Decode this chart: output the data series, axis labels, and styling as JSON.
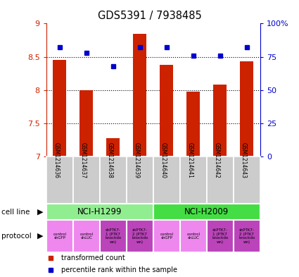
{
  "title": "GDS5391 / 7938485",
  "samples": [
    "GSM1214636",
    "GSM1214637",
    "GSM1214638",
    "GSM1214639",
    "GSM1214640",
    "GSM1214641",
    "GSM1214642",
    "GSM1214643"
  ],
  "transformed_counts": [
    8.45,
    8.0,
    7.28,
    8.85,
    8.38,
    7.98,
    8.08,
    8.43
  ],
  "percentile_ranks": [
    82,
    78,
    68,
    82,
    82,
    76,
    76,
    82
  ],
  "bar_color": "#cc2200",
  "dot_color": "#0000cc",
  "ylim_left": [
    7,
    9
  ],
  "ylim_right": [
    0,
    100
  ],
  "yticks_left": [
    7,
    7.5,
    8,
    8.5,
    9
  ],
  "yticks_right": [
    0,
    25,
    50,
    75,
    100
  ],
  "ytick_labels_right": [
    "0",
    "25",
    "50",
    "75",
    "100%"
  ],
  "cell_line_groups": [
    {
      "label": "NCI-H1299",
      "start": 0,
      "end": 3,
      "color": "#90ee90"
    },
    {
      "label": "NCI-H2009",
      "start": 4,
      "end": 7,
      "color": "#44dd44"
    }
  ],
  "protocols": [
    {
      "label": "control\nshGFP",
      "color": "#ee88ee"
    },
    {
      "label": "control\nshLUC",
      "color": "#ee88ee"
    },
    {
      "label": "shPTK7-\n1 (PTK7\nknockdo\nwn)",
      "color": "#bb44bb"
    },
    {
      "label": "shPTK7-\n2 (PTK7\nknockdo\nwn)",
      "color": "#bb44bb"
    },
    {
      "label": "control\nshGFP",
      "color": "#ee88ee"
    },
    {
      "label": "control\nshLUC",
      "color": "#ee88ee"
    },
    {
      "label": "shPTK7-\n1 (PTK7\nknockdo\nwn)",
      "color": "#bb44bb"
    },
    {
      "label": "shPTK7-\n2 (PTK7\nknockdo\nwn)",
      "color": "#bb44bb"
    }
  ],
  "legend_bar_color": "#cc2200",
  "legend_dot_color": "#0000cc",
  "bg_color": "#ffffff",
  "left_axis_color": "#cc2200",
  "right_axis_color": "#0000cc",
  "sample_bg_color": "#cccccc",
  "bar_width": 0.5,
  "dot_size": 5
}
